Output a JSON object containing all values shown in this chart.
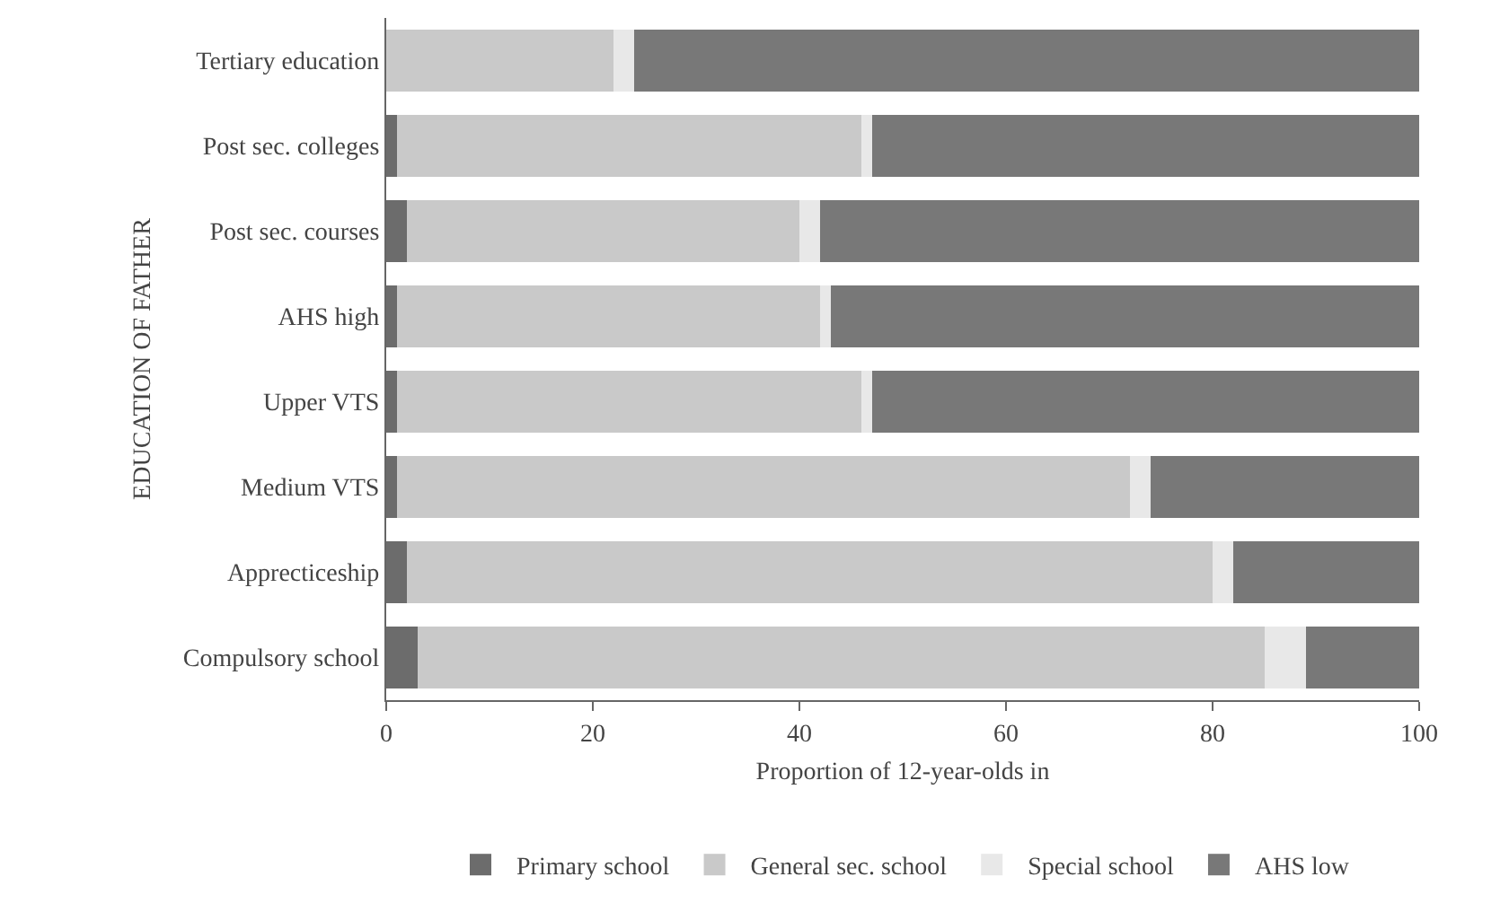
{
  "chart_data": {
    "type": "bar",
    "orientation": "horizontal",
    "stacked": true,
    "categories": [
      "Tertiary education",
      "Post sec. colleges",
      "Post sec. courses",
      "AHS high",
      "Upper VTS",
      "Medium VTS",
      "Apprecticeship",
      "Compulsory school"
    ],
    "series": [
      {
        "name": "Primary school",
        "color": "#6c6c6c",
        "values": [
          0,
          1,
          2,
          1,
          1,
          1,
          2,
          3
        ]
      },
      {
        "name": "General sec. school",
        "color": "#c9c9c9",
        "values": [
          22,
          45,
          38,
          41,
          45,
          71,
          78,
          82
        ]
      },
      {
        "name": "Special school",
        "color": "#e8e8e8",
        "values": [
          2,
          1,
          2,
          1,
          1,
          2,
          2,
          4
        ]
      },
      {
        "name": "AHS low",
        "color": "#787878",
        "values": [
          76,
          53,
          58,
          57,
          53,
          26,
          18,
          11
        ]
      }
    ],
    "xlabel": "Proportion of 12-year-olds in",
    "ylabel": "EDUCATION OF FATHER",
    "xlim": [
      0,
      100
    ],
    "xticks": [
      0,
      20,
      40,
      60,
      80,
      100
    ],
    "grid": false,
    "legend": "bottom"
  }
}
